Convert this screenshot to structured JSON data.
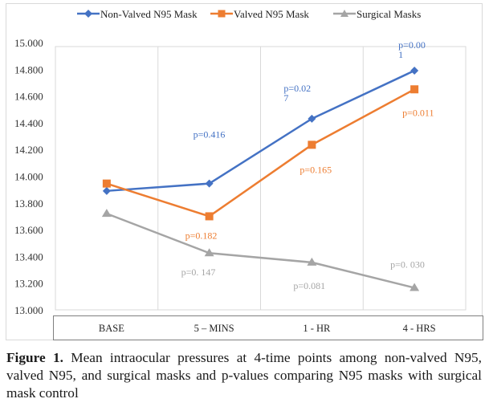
{
  "chart_data": {
    "type": "line",
    "title": "",
    "xlabel": "",
    "ylabel": "",
    "categories": [
      "BASE",
      "5 – MINS",
      "1 - HR",
      "4 - HRS"
    ],
    "ylim": [
      13.0,
      15.0
    ],
    "yticks": [
      "13.000",
      "13.200",
      "13.400",
      "13.600",
      "13.800",
      "14.000",
      "14.200",
      "14.400",
      "14.600",
      "14.800",
      "15.000"
    ],
    "grid": "vertical",
    "legend_position": "top",
    "series": [
      {
        "name": "Non-Valved N95 Mask",
        "color": "#4472c4",
        "marker": "diamond",
        "values": [
          13.89,
          13.945,
          14.43,
          14.79
        ],
        "annotations": [
          null,
          "p=0.416",
          "p=0.02\n7",
          "p=0.00\n1"
        ]
      },
      {
        "name": "Valved N95 Mask",
        "color": "#ed7d31",
        "marker": "square",
        "values": [
          13.945,
          13.7,
          14.235,
          14.65
        ],
        "annotations": [
          null,
          "p=0.182",
          "p=0.165",
          "p=0.011"
        ]
      },
      {
        "name": "Surgical Masks",
        "color": "#a5a5a5",
        "marker": "triangle",
        "values": [
          13.72,
          13.425,
          13.355,
          13.165
        ],
        "annotations": [
          null,
          "p=0. 147",
          "p=0.081",
          "p=0. 030"
        ]
      }
    ]
  },
  "caption": {
    "label": "Figure 1.",
    "text": " Mean intraocular pressures at 4-time points among non-valved N95, valved N95, and surgical masks and p-values comparing N95 masks with surgical mask control"
  }
}
